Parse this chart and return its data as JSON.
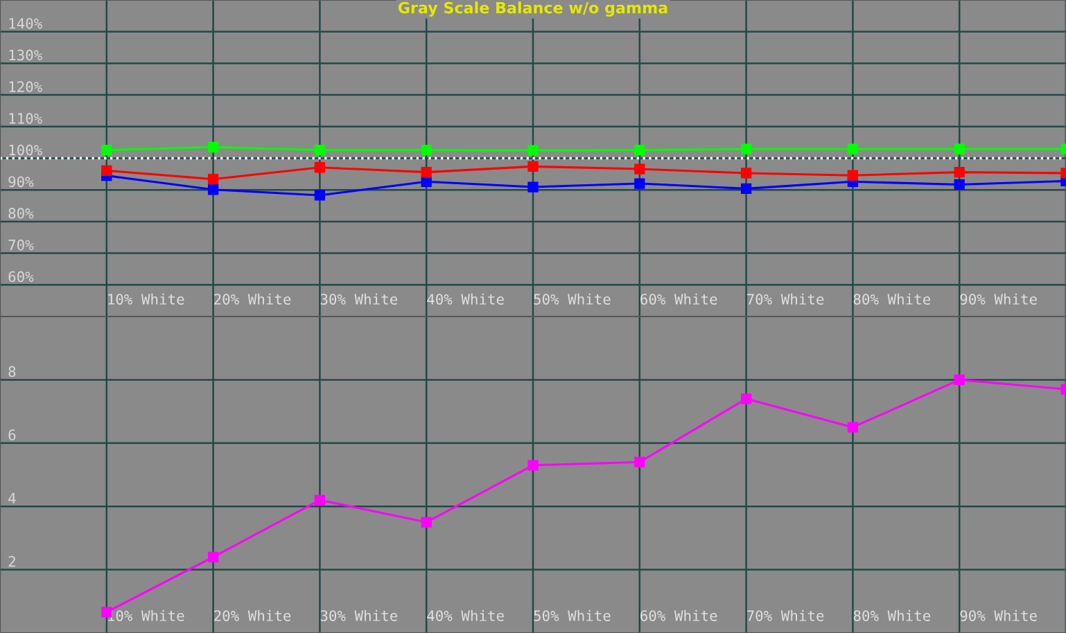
{
  "chart_data": [
    {
      "type": "line",
      "title": "Gray Scale Balance w/o gamma",
      "categories": [
        "10% White",
        "20% White",
        "30% White",
        "40% White",
        "50% White",
        "60% White",
        "70% White",
        "80% White",
        "90% White",
        null
      ],
      "series": [
        {
          "color": "#00ff00",
          "values": [
            102.6,
            103.5,
            102.6,
            102.6,
            102.5,
            102.6,
            102.9,
            102.9,
            102.9,
            102.9
          ]
        },
        {
          "color": "#ff0000",
          "values": [
            96.1,
            93.4,
            97.1,
            95.6,
            97.4,
            96.6,
            95.3,
            94.6,
            95.6,
            95.3
          ]
        },
        {
          "color": "#0000ff",
          "values": [
            94.5,
            90.1,
            88.3,
            92.6,
            90.9,
            92.0,
            90.4,
            92.6,
            91.7,
            92.8
          ]
        }
      ],
      "ylim": [
        50,
        150
      ],
      "yticks": [
        {
          "value": 60,
          "label": "60%"
        },
        {
          "value": 70,
          "label": "70%"
        },
        {
          "value": 80,
          "label": "80%"
        },
        {
          "value": 90,
          "label": "90%"
        },
        {
          "value": 100,
          "label": "100%"
        },
        {
          "value": 110,
          "label": "110%"
        },
        {
          "value": 120,
          "label": "120%"
        },
        {
          "value": 130,
          "label": "130%"
        },
        {
          "value": 140,
          "label": "140%"
        }
      ],
      "ref_lines": [
        {
          "axis": "y",
          "value": 100,
          "label": null,
          "color": "#ffffff",
          "line_style": "dotted"
        }
      ],
      "grid": true,
      "marker": "square",
      "line_style": "solid",
      "legend": false
    },
    {
      "type": "line",
      "categories": [
        "10% White",
        "20% White",
        "30% White",
        "40% White",
        "50% White",
        "60% White",
        "70% White",
        "80% White",
        "90% White",
        null
      ],
      "series": [
        {
          "color": "#ff00ff",
          "values": [
            0.66,
            2.4,
            4.2,
            3.5,
            5.3,
            5.4,
            7.4,
            6.5,
            8.0,
            7.7
          ]
        }
      ],
      "ylim": [
        0,
        10
      ],
      "yticks": [
        2,
        4,
        6,
        8
      ],
      "grid": true,
      "marker": "square",
      "line_style": "solid",
      "legend": false
    }
  ]
}
